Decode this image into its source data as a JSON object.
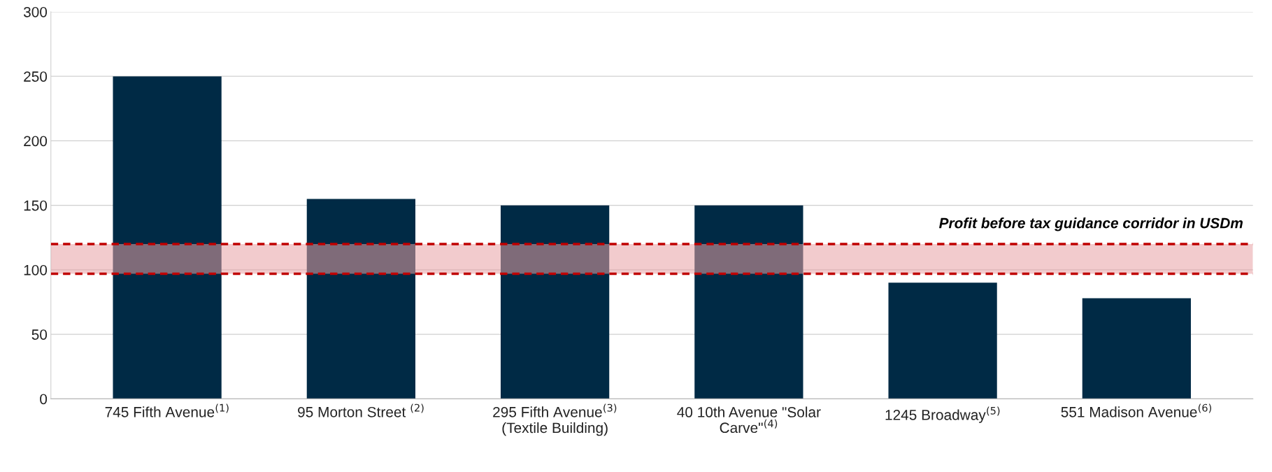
{
  "chart_data": {
    "type": "bar",
    "categories": [
      "745 Fifth Avenue$^{(1)}$",
      "95 Morton Street $^{(2)}$",
      "295 Fifth Avenue$^{(3)}$\n(Textile Building)",
      "40 10th Avenue \"Solar\nCarve\"$^{(4)}$",
      "1245 Broadway$^{(5)}$",
      "551 Madison Avenue$^{(6)}$"
    ],
    "values": [
      250,
      155,
      150,
      150,
      90,
      78
    ],
    "color": "#002a45",
    "ylim": [
      0,
      300
    ],
    "yticks": [
      0,
      50,
      100,
      150,
      200,
      250,
      300
    ],
    "grid": "y",
    "bands": [
      {
        "axis": "y",
        "from": 97,
        "to": 120,
        "label": "Profit before tax guidance corridor in USDm",
        "color": "#e8a0a4"
      }
    ],
    "ref_lines": [
      {
        "axis": "y",
        "value": 97,
        "color": "#c00000",
        "line_style": "dashed"
      },
      {
        "axis": "y",
        "value": 120,
        "color": "#c00000",
        "line_style": "dashed"
      }
    ]
  }
}
